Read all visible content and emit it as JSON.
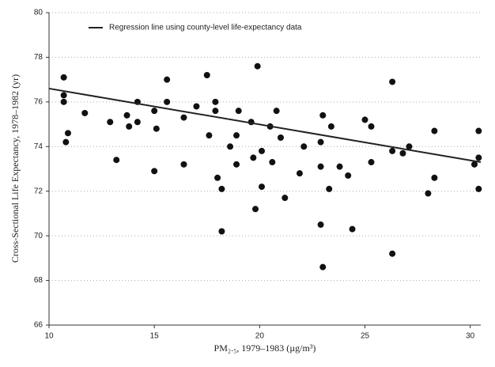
{
  "chart_data": {
    "type": "scatter",
    "x_label": "PM₂.₅, 1979–1983 (µg/m³)",
    "y_label": "Cross-Sectional Life Expectancy, 1978–1982 (yr)",
    "xlim": [
      10,
      30.5
    ],
    "xticks": [
      10,
      15,
      20,
      25,
      30
    ],
    "ylim": [
      66,
      80
    ],
    "yticks": [
      66,
      68,
      70,
      72,
      74,
      76,
      78,
      80
    ],
    "grid": true,
    "color": "#111",
    "x": [
      10.7,
      10.7,
      10.7,
      10.8,
      10.9,
      11.7,
      12.9,
      13.2,
      13.7,
      13.8,
      14.2,
      14.2,
      15.0,
      15.0,
      15.1,
      15.6,
      15.6,
      16.4,
      16.4,
      17.0,
      17.5,
      17.6,
      17.9,
      17.9,
      18.0,
      18.2,
      18.2,
      18.6,
      18.9,
      19.0,
      19.6,
      19.7,
      19.8,
      19.9,
      20.1,
      20.1,
      20.6,
      20.8,
      21.0,
      21.2,
      21.9,
      22.9,
      23.0,
      22.9,
      22.9,
      23.0,
      23.3,
      23.4,
      23.8,
      24.2,
      24.4,
      25.0,
      25.3,
      25.3,
      26.3,
      26.3,
      26.3,
      26.8,
      27.1,
      28.0,
      28.3,
      28.3,
      30.2,
      30.4,
      30.4,
      30.4,
      22.1,
      20.5,
      18.9
    ],
    "values": [
      77.1,
      76.3,
      76.0,
      74.2,
      74.6,
      75.5,
      75.1,
      73.4,
      75.4,
      74.9,
      75.1,
      76.0,
      72.9,
      75.6,
      74.8,
      77.0,
      76.0,
      73.2,
      75.3,
      75.8,
      77.2,
      74.5,
      76.0,
      75.6,
      72.6,
      72.1,
      70.2,
      74.0,
      73.2,
      75.6,
      75.1,
      73.5,
      71.2,
      77.6,
      73.8,
      72.2,
      73.3,
      75.6,
      74.4,
      71.7,
      72.8,
      70.5,
      75.4,
      74.2,
      73.1,
      68.6,
      72.1,
      74.9,
      73.1,
      72.7,
      70.3,
      75.2,
      73.3,
      74.9,
      73.8,
      76.9,
      69.2,
      73.7,
      74.0,
      71.9,
      72.6,
      74.7,
      73.2,
      73.5,
      72.1,
      74.7,
      74.0,
      74.9,
      74.5
    ],
    "regression": {
      "name": "Regression line using county-level life-expectancy data",
      "color": "#222",
      "x": [
        10,
        30.5
      ],
      "values": [
        76.6,
        73.3
      ]
    }
  }
}
